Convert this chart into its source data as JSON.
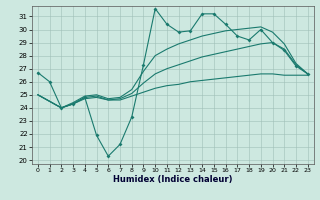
{
  "xlabel": "Humidex (Indice chaleur)",
  "xlim": [
    -0.5,
    23.5
  ],
  "ylim": [
    19.7,
    31.8
  ],
  "yticks": [
    20,
    21,
    22,
    23,
    24,
    25,
    26,
    27,
    28,
    29,
    30,
    31
  ],
  "xticks": [
    0,
    1,
    2,
    3,
    4,
    5,
    6,
    7,
    8,
    9,
    10,
    11,
    12,
    13,
    14,
    15,
    16,
    17,
    18,
    19,
    20,
    21,
    22,
    23
  ],
  "bg_color": "#cde8e0",
  "line_color": "#1a7a6e",
  "line1_y": [
    26.7,
    26.0,
    24.0,
    24.3,
    24.8,
    21.9,
    20.3,
    21.2,
    23.3,
    27.3,
    31.6,
    30.4,
    29.8,
    29.9,
    31.2,
    31.2,
    30.4,
    29.5,
    29.2,
    30.0,
    29.0,
    28.4,
    27.2,
    26.6
  ],
  "line2_y": [
    25.0,
    24.5,
    24.0,
    24.3,
    24.7,
    24.8,
    24.6,
    24.6,
    24.9,
    25.2,
    25.5,
    25.7,
    25.8,
    26.0,
    26.1,
    26.2,
    26.3,
    26.4,
    26.5,
    26.6,
    26.6,
    26.5,
    26.5,
    26.5
  ],
  "line3_y": [
    25.0,
    24.5,
    24.0,
    24.3,
    24.8,
    24.9,
    24.6,
    24.7,
    25.1,
    25.9,
    26.6,
    27.0,
    27.3,
    27.6,
    27.9,
    28.1,
    28.3,
    28.5,
    28.7,
    28.9,
    29.0,
    28.5,
    27.3,
    26.6
  ],
  "line4_y": [
    25.0,
    24.5,
    24.0,
    24.4,
    24.9,
    25.0,
    24.7,
    24.8,
    25.4,
    26.8,
    28.0,
    28.5,
    28.9,
    29.2,
    29.5,
    29.7,
    29.9,
    30.0,
    30.1,
    30.2,
    29.8,
    28.9,
    27.4,
    26.6
  ]
}
